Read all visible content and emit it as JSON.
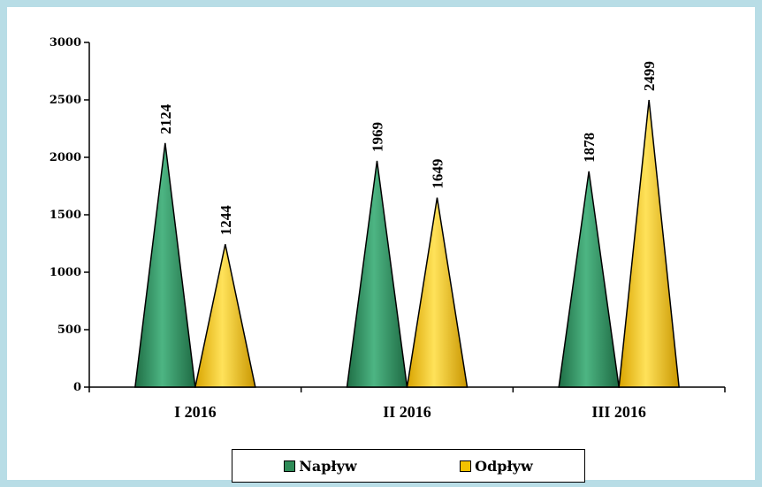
{
  "chart_data": {
    "type": "bar",
    "shape": "cone",
    "title": "",
    "xlabel": "",
    "ylabel": "",
    "categories": [
      "I 2016",
      "II 2016",
      "III 2016"
    ],
    "ylim": [
      0,
      3000
    ],
    "yticks": [
      "0",
      "500",
      "1000",
      "1500",
      "2000",
      "2500",
      "3000"
    ],
    "series": [
      {
        "name": "Napływ",
        "values": [
          2124,
          1969,
          1878
        ],
        "color": "#2e8b57"
      },
      {
        "name": "Odpływ",
        "values": [
          1244,
          1649,
          2499
        ],
        "color": "#f2c200"
      }
    ],
    "data_labels": [
      [
        "2124",
        "1969",
        "1878"
      ],
      [
        "1244",
        "1649",
        "2499"
      ]
    ],
    "grid": false,
    "legend_position": "bottom"
  }
}
